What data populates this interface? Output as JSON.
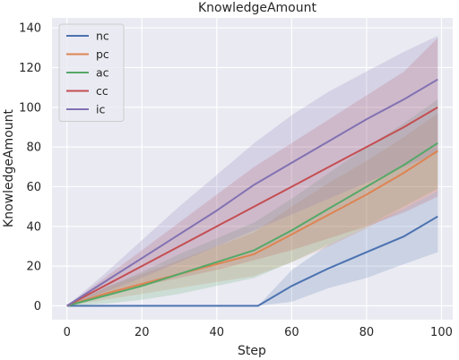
{
  "chart_data": {
    "type": "line",
    "title": "KnowledgeAmount",
    "xlabel": "Step",
    "ylabel": "KnowledgeAmount",
    "xlim": [
      -4,
      103
    ],
    "ylim": [
      -7,
      145
    ],
    "xticks": [
      0,
      20,
      40,
      60,
      80,
      100
    ],
    "yticks": [
      0,
      20,
      40,
      60,
      80,
      100,
      120,
      140
    ],
    "grid": true,
    "legend_position": "top-left",
    "series": [
      {
        "name": "nc",
        "color": "#4c72b0",
        "x": [
          0,
          51,
          60,
          70,
          80,
          90,
          99
        ],
        "y": [
          0,
          0,
          10,
          19,
          27,
          35,
          45
        ],
        "lower": [
          0,
          0,
          2,
          9,
          14,
          21,
          27
        ],
        "upper": [
          0,
          0,
          18,
          31,
          40,
          49,
          58
        ]
      },
      {
        "name": "pc",
        "color": "#dd8452",
        "x": [
          0,
          10,
          20,
          30,
          40,
          50,
          60,
          70,
          80,
          90,
          99
        ],
        "y": [
          0,
          6,
          11,
          16,
          21,
          26,
          36,
          46,
          56,
          67,
          78
        ],
        "lower": [
          0,
          3,
          6,
          9,
          12,
          15,
          22,
          30,
          39,
          49,
          58
        ],
        "upper": [
          0,
          9,
          16,
          23,
          30,
          37,
          50,
          62,
          73,
          85,
          97
        ]
      },
      {
        "name": "ac",
        "color": "#55a868",
        "x": [
          0,
          10,
          20,
          30,
          40,
          50,
          60,
          70,
          80,
          90,
          99
        ],
        "y": [
          0,
          5,
          10,
          16,
          22,
          28,
          38,
          49,
          60,
          71,
          82
        ],
        "lower": [
          0,
          1,
          3,
          6,
          10,
          14,
          22,
          31,
          40,
          50,
          59
        ],
        "upper": [
          0,
          9,
          17,
          26,
          34,
          42,
          54,
          67,
          80,
          92,
          104
        ]
      },
      {
        "name": "cc",
        "color": "#c44e52",
        "x": [
          0,
          10,
          20,
          30,
          40,
          50,
          60,
          70,
          80,
          90,
          99
        ],
        "y": [
          0,
          10,
          20,
          30,
          40,
          50,
          60,
          70,
          80,
          90,
          100
        ],
        "lower": [
          0,
          5,
          10,
          14,
          18,
          23,
          28,
          34,
          40,
          47,
          55
        ],
        "upper": [
          0,
          14,
          28,
          42,
          56,
          70,
          82,
          94,
          106,
          118,
          135
        ]
      },
      {
        "name": "ic",
        "color": "#8172b2",
        "x": [
          0,
          10,
          20,
          30,
          40,
          50,
          60,
          70,
          80,
          90,
          99
        ],
        "y": [
          0,
          12,
          24,
          36,
          48,
          61,
          72,
          83,
          94,
          104,
          114
        ],
        "lower": [
          0,
          7,
          14,
          22,
          30,
          38,
          46,
          54,
          62,
          70,
          77
        ],
        "upper": [
          0,
          16,
          33,
          50,
          66,
          82,
          96,
          108,
          118,
          128,
          136
        ]
      }
    ]
  }
}
